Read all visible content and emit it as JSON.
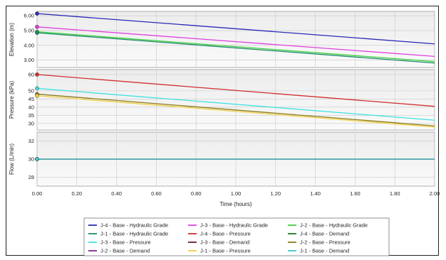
{
  "chart_data": {
    "type": "line",
    "x": [
      0.0,
      2.0
    ],
    "xlabel": "Time (hours)",
    "xlim": [
      0.0,
      2.0
    ],
    "xticks": [
      "0.00",
      "0.20",
      "0.40",
      "0.60",
      "0.80",
      "1.00",
      "1.20",
      "1.40",
      "1.60",
      "1.80",
      "2.00"
    ],
    "grid": true,
    "legend_position": "bottom",
    "panels": [
      {
        "id": "elevation",
        "ylabel": "Elevation (m)",
        "ylim": [
          2.5,
          6.3
        ],
        "yticks": [
          "6.00",
          "5.00",
          "4.00",
          "3.00"
        ],
        "ytick_values": [
          6,
          5,
          4,
          3
        ],
        "series": [
          {
            "name": "J-4 - Base - Hydraulic Grade",
            "color": "#2a2ab8",
            "values": [
              6.15,
              4.1
            ]
          },
          {
            "name": "J-3 - Base - Hydraulic Grade",
            "color": "#e040e0",
            "values": [
              5.25,
              3.25
            ]
          },
          {
            "name": "J-2 - Base - Hydraulic Grade",
            "color": "#40d040",
            "values": [
              4.92,
              2.9
            ]
          },
          {
            "name": "J-1 - Base - Hydraulic Grade",
            "color": "#1a8a6a",
            "values": [
              4.85,
              2.8
            ]
          }
        ]
      },
      {
        "id": "pressure",
        "ylabel": "Pressure (kPa)",
        "ylim": [
          26,
          63
        ],
        "yticks": [
          "60",
          "50",
          "45",
          "40",
          "35",
          "30"
        ],
        "ytick_values": [
          60,
          50,
          45,
          40,
          35,
          30
        ],
        "series": [
          {
            "name": "J-4 - Base - Pressure",
            "color": "#d03030",
            "values": [
              60.0,
              40.5
            ]
          },
          {
            "name": "J-3 - Base - Pressure",
            "color": "#40e0e0",
            "values": [
              51.5,
              32.0
            ]
          },
          {
            "name": "J-2 - Base - Pressure",
            "color": "#8a7a20",
            "values": [
              48.0,
              28.5
            ]
          },
          {
            "name": "J-1 - Base - Pressure",
            "color": "#f0d040",
            "values": [
              47.0,
              27.8
            ]
          }
        ]
      },
      {
        "id": "flow",
        "ylabel": "Flow (L/min)",
        "ylim": [
          27,
          33
        ],
        "yticks": [
          "32",
          "30",
          "28"
        ],
        "ytick_values": [
          32,
          30,
          28
        ],
        "series": [
          {
            "name": "J-4 - Base - Demand",
            "color": "#1a7a1a",
            "values": [
              30,
              30
            ]
          },
          {
            "name": "J-3 - Base - Demand",
            "color": "#6a1a2a",
            "values": [
              30,
              30
            ]
          },
          {
            "name": "J-2 - Base - Demand",
            "color": "#7a2a8a",
            "values": [
              30,
              30
            ]
          },
          {
            "name": "J-1 - Base - Demand",
            "color": "#40c8c8",
            "values": [
              30,
              30
            ]
          }
        ]
      }
    ],
    "legend": [
      {
        "name": "J-4 - Base - Hydraulic Grade",
        "color": "#2a2ab8"
      },
      {
        "name": "J-3 - Base - Hydraulic Grade",
        "color": "#e040e0"
      },
      {
        "name": "J-2 - Base - Hydraulic Grade",
        "color": "#40d040"
      },
      {
        "name": "J-1 - Base - Hydraulic Grade",
        "color": "#1a8a6a"
      },
      {
        "name": "J-4 - Base - Pressure",
        "color": "#d03030"
      },
      {
        "name": "J-4 - Base - Demand",
        "color": "#1a7a1a"
      },
      {
        "name": "J-3 - Base - Pressure",
        "color": "#40e0e0"
      },
      {
        "name": "J-3 - Base - Demand",
        "color": "#6a1a2a"
      },
      {
        "name": "J-2 - Base - Pressure",
        "color": "#8a7a20"
      },
      {
        "name": "J-2 - Base - Demand",
        "color": "#7a2a8a"
      },
      {
        "name": "J-1 - Base - Pressure",
        "color": "#f0d040"
      },
      {
        "name": "J-1 - Base - Demand",
        "color": "#40c8c8"
      }
    ]
  }
}
